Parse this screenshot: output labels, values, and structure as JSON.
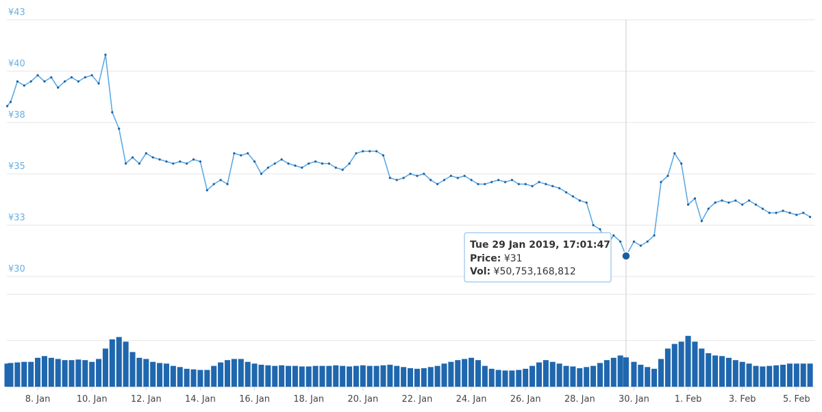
{
  "chart_data": {
    "type": "line",
    "xlim": [
      "2019-01-06T20:40",
      "2019-02-05T16:30"
    ],
    "xticks": [
      {
        "value": "2019-01-08T00:00",
        "label": "8. Jan"
      },
      {
        "value": "2019-01-10T00:00",
        "label": "10. Jan"
      },
      {
        "value": "2019-01-12T00:00",
        "label": "12. Jan"
      },
      {
        "value": "2019-01-14T00:00",
        "label": "14. Jan"
      },
      {
        "value": "2019-01-16T00:00",
        "label": "16. Jan"
      },
      {
        "value": "2019-01-18T00:00",
        "label": "18. Jan"
      },
      {
        "value": "2019-01-20T00:00",
        "label": "20. Jan"
      },
      {
        "value": "2019-01-22T00:00",
        "label": "22. Jan"
      },
      {
        "value": "2019-01-24T00:00",
        "label": "24. Jan"
      },
      {
        "value": "2019-01-26T00:00",
        "label": "26. Jan"
      },
      {
        "value": "2019-01-28T00:00",
        "label": "28. Jan"
      },
      {
        "value": "2019-01-30T00:00",
        "label": "30. Jan"
      },
      {
        "value": "2019-02-01T00:00",
        "label": "1. Feb"
      },
      {
        "value": "2019-02-03T00:00",
        "label": "3. Feb"
      },
      {
        "value": "2019-02-05T00:00",
        "label": "5. Feb"
      }
    ],
    "ylim": [
      30,
      42.5
    ],
    "yticks": [
      {
        "value": 42.5,
        "label": "¥43"
      },
      {
        "value": 40,
        "label": "¥40"
      },
      {
        "value": 37.5,
        "label": "¥38"
      },
      {
        "value": 35,
        "label": "¥35"
      },
      {
        "value": 32.5,
        "label": "¥33"
      },
      {
        "value": 30,
        "label": "¥30"
      }
    ],
    "volume_lim": [
      0,
      160000000000.0
    ],
    "volume_grid": [
      80000000000.0,
      160000000000.0
    ],
    "grid": true,
    "x": [
      "2019-01-06T21:00",
      "2019-01-07T00:00",
      "2019-01-07T06:00",
      "2019-01-07T12:00",
      "2019-01-07T18:00",
      "2019-01-08T00:00",
      "2019-01-08T06:00",
      "2019-01-08T12:00",
      "2019-01-08T18:00",
      "2019-01-09T00:00",
      "2019-01-09T06:00",
      "2019-01-09T12:00",
      "2019-01-09T18:00",
      "2019-01-10T00:00",
      "2019-01-10T06:00",
      "2019-01-10T12:00",
      "2019-01-10T18:00",
      "2019-01-11T00:00",
      "2019-01-11T06:00",
      "2019-01-11T12:00",
      "2019-01-11T18:00",
      "2019-01-12T00:00",
      "2019-01-12T06:00",
      "2019-01-12T12:00",
      "2019-01-12T18:00",
      "2019-01-13T00:00",
      "2019-01-13T06:00",
      "2019-01-13T12:00",
      "2019-01-13T18:00",
      "2019-01-14T00:00",
      "2019-01-14T06:00",
      "2019-01-14T12:00",
      "2019-01-14T18:00",
      "2019-01-15T00:00",
      "2019-01-15T06:00",
      "2019-01-15T12:00",
      "2019-01-15T18:00",
      "2019-01-16T00:00",
      "2019-01-16T06:00",
      "2019-01-16T12:00",
      "2019-01-16T18:00",
      "2019-01-17T00:00",
      "2019-01-17T06:00",
      "2019-01-17T12:00",
      "2019-01-17T18:00",
      "2019-01-18T00:00",
      "2019-01-18T06:00",
      "2019-01-18T12:00",
      "2019-01-18T18:00",
      "2019-01-19T00:00",
      "2019-01-19T06:00",
      "2019-01-19T12:00",
      "2019-01-19T18:00",
      "2019-01-20T00:00",
      "2019-01-20T06:00",
      "2019-01-20T12:00",
      "2019-01-20T18:00",
      "2019-01-21T00:00",
      "2019-01-21T06:00",
      "2019-01-21T12:00",
      "2019-01-21T18:00",
      "2019-01-22T00:00",
      "2019-01-22T06:00",
      "2019-01-22T12:00",
      "2019-01-22T18:00",
      "2019-01-23T00:00",
      "2019-01-23T06:00",
      "2019-01-23T12:00",
      "2019-01-23T18:00",
      "2019-01-24T00:00",
      "2019-01-24T06:00",
      "2019-01-24T12:00",
      "2019-01-24T18:00",
      "2019-01-25T00:00",
      "2019-01-25T06:00",
      "2019-01-25T12:00",
      "2019-01-25T18:00",
      "2019-01-26T00:00",
      "2019-01-26T06:00",
      "2019-01-26T12:00",
      "2019-01-26T18:00",
      "2019-01-27T00:00",
      "2019-01-27T06:00",
      "2019-01-27T12:00",
      "2019-01-27T18:00",
      "2019-01-28T00:00",
      "2019-01-28T06:00",
      "2019-01-28T12:00",
      "2019-01-28T18:00",
      "2019-01-29T00:00",
      "2019-01-29T06:00",
      "2019-01-29T12:00",
      "2019-01-29T17:01:47",
      "2019-01-30T00:00",
      "2019-01-30T06:00",
      "2019-01-30T12:00",
      "2019-01-30T18:00",
      "2019-01-31T00:00",
      "2019-01-31T06:00",
      "2019-01-31T12:00",
      "2019-01-31T18:00",
      "2019-02-01T00:00",
      "2019-02-01T06:00",
      "2019-02-01T12:00",
      "2019-02-01T18:00",
      "2019-02-02T00:00",
      "2019-02-02T06:00",
      "2019-02-02T12:00",
      "2019-02-02T18:00",
      "2019-02-03T00:00",
      "2019-02-03T06:00",
      "2019-02-03T12:00",
      "2019-02-03T18:00",
      "2019-02-04T00:00",
      "2019-02-04T06:00",
      "2019-02-04T12:00",
      "2019-02-04T18:00",
      "2019-02-05T00:00",
      "2019-02-05T06:00",
      "2019-02-05T12:00"
    ],
    "series": [
      {
        "color": "#5aa9e6",
        "point_color": "#1b5e9e",
        "values": [
          38.3,
          38.5,
          39.5,
          39.3,
          39.5,
          39.8,
          39.5,
          39.7,
          39.2,
          39.5,
          39.7,
          39.5,
          39.7,
          39.8,
          39.4,
          40.8,
          38.0,
          37.2,
          35.5,
          35.8,
          35.5,
          36.0,
          35.8,
          35.7,
          35.6,
          35.5,
          35.6,
          35.5,
          35.7,
          35.6,
          34.2,
          34.5,
          34.7,
          34.5,
          36.0,
          35.9,
          36.0,
          35.6,
          35.0,
          35.3,
          35.5,
          35.7,
          35.5,
          35.4,
          35.3,
          35.5,
          35.6,
          35.5,
          35.5,
          35.3,
          35.2,
          35.5,
          36.0,
          36.1,
          36.1,
          36.1,
          35.9,
          34.8,
          34.7,
          34.8,
          35.0,
          34.9,
          35.0,
          34.7,
          34.5,
          34.7,
          34.9,
          34.8,
          34.9,
          34.7,
          34.5,
          34.5,
          34.6,
          34.7,
          34.6,
          34.7,
          34.5,
          34.5,
          34.4,
          34.6,
          34.5,
          34.4,
          34.3,
          34.1,
          33.9,
          33.7,
          33.6,
          32.5,
          32.3,
          31.5,
          32.0,
          31.7,
          31,
          31.7,
          31.5,
          31.7,
          32.0,
          34.6,
          34.9,
          36.0,
          35.5,
          33.5,
          33.8,
          32.7,
          33.3,
          33.6,
          33.7,
          33.6,
          33.7,
          33.5,
          33.7,
          33.5,
          33.3,
          33.1,
          33.1,
          33.2,
          33.1,
          33.0,
          33.1,
          32.9
        ]
      },
      {
        "color": "#1f67ae",
        "axis": "volume",
        "values": [
          40000000000.0,
          41000000000.0,
          42000000000.0,
          43000000000.0,
          43000000000.0,
          50000000000.0,
          53000000000.0,
          50000000000.0,
          48000000000.0,
          46000000000.0,
          46000000000.0,
          47000000000.0,
          46000000000.0,
          43000000000.0,
          48000000000.0,
          66000000000.0,
          82000000000.0,
          86000000000.0,
          78000000000.0,
          60000000000.0,
          50000000000.0,
          48000000000.0,
          43000000000.0,
          41000000000.0,
          40000000000.0,
          36000000000.0,
          34000000000.0,
          31000000000.0,
          30000000000.0,
          29000000000.0,
          29000000000.0,
          36000000000.0,
          42000000000.0,
          46000000000.0,
          48000000000.0,
          48000000000.0,
          43000000000.0,
          40000000000.0,
          38000000000.0,
          37000000000.0,
          36000000000.0,
          37000000000.0,
          36000000000.0,
          36000000000.0,
          35000000000.0,
          35000000000.0,
          36000000000.0,
          36000000000.0,
          36000000000.0,
          37000000000.0,
          36000000000.0,
          35000000000.0,
          36000000000.0,
          37000000000.0,
          36000000000.0,
          36000000000.0,
          37000000000.0,
          38000000000.0,
          36000000000.0,
          34000000000.0,
          32000000000.0,
          31000000000.0,
          32000000000.0,
          34000000000.0,
          36000000000.0,
          40000000000.0,
          43000000000.0,
          46000000000.0,
          48000000000.0,
          50000000000.0,
          46000000000.0,
          36000000000.0,
          31000000000.0,
          29000000000.0,
          28000000000.0,
          28000000000.0,
          29000000000.0,
          31000000000.0,
          36000000000.0,
          42000000000.0,
          46000000000.0,
          43000000000.0,
          40000000000.0,
          36000000000.0,
          35000000000.0,
          32000000000.0,
          34000000000.0,
          36000000000.0,
          41000000000.0,
          46000000000.0,
          50000000000.0,
          54000000000.0,
          50753168812,
          43000000000.0,
          38000000000.0,
          34000000000.0,
          31000000000.0,
          48000000000.0,
          66000000000.0,
          74000000000.0,
          78000000000.0,
          88000000000.0,
          78000000000.0,
          66000000000.0,
          58000000000.0,
          54000000000.0,
          53000000000.0,
          50000000000.0,
          46000000000.0,
          43000000000.0,
          40000000000.0,
          36000000000.0,
          35000000000.0,
          36000000000.0,
          37000000000.0,
          38000000000.0,
          40000000000.0,
          40000000000.0,
          40000000000.0,
          40000000000.0
        ]
      }
    ],
    "tooltip": {
      "title": "Tue 29 Jan 2019, 17:01:47",
      "price_label": "Price:",
      "price_text": "¥31",
      "vol_label": "Vol:",
      "vol_text": "¥50,753,168,812"
    }
  }
}
